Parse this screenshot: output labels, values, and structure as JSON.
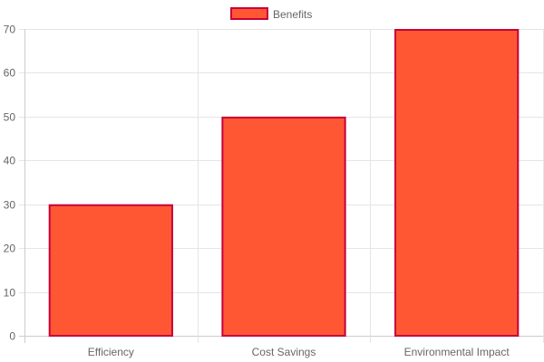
{
  "chart_data": {
    "type": "bar",
    "categories": [
      "Efficiency",
      "Cost Savings",
      "Environmental Impact"
    ],
    "series": [
      {
        "name": "Benefits",
        "values": [
          30,
          50,
          70
        ]
      }
    ],
    "title": "",
    "xlabel": "",
    "ylabel": "",
    "ylim": [
      0,
      70
    ],
    "y_ticks": [
      0,
      10,
      20,
      30,
      40,
      50,
      60,
      70
    ],
    "grid": true,
    "legend": "top-center",
    "colors": {
      "bar_fill": "#FF5733",
      "bar_border": "#C70039",
      "grid": "#e5e5e5",
      "axis": "#cccccc",
      "text": "#666666"
    }
  }
}
